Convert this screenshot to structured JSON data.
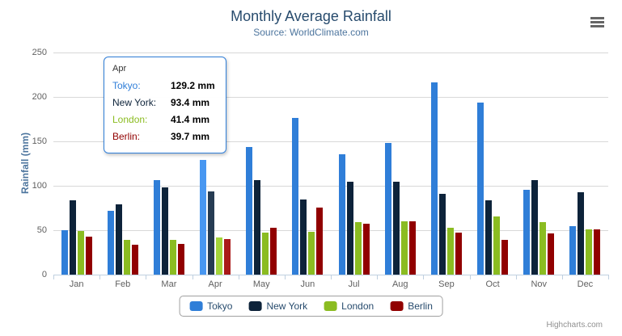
{
  "chart": {
    "title": "Monthly Average Rainfall",
    "subtitle": "Source: WorldClimate.com",
    "yaxis_title": "Rainfall (mm)",
    "credits": "Highcharts.com"
  },
  "chart_data": {
    "type": "bar",
    "title": "Monthly Average Rainfall",
    "subtitle": "Source: WorldClimate.com",
    "xlabel": "",
    "ylabel": "Rainfall (mm)",
    "ylim": [
      0,
      250
    ],
    "yticks": [
      0,
      50,
      100,
      150,
      200,
      250
    ],
    "grid": true,
    "legend_position": "bottom",
    "categories": [
      "Jan",
      "Feb",
      "Mar",
      "Apr",
      "May",
      "Jun",
      "Jul",
      "Aug",
      "Sep",
      "Oct",
      "Nov",
      "Dec"
    ],
    "series": [
      {
        "name": "Tokyo",
        "color": "#2f7ed8",
        "hover_color": "#4897f1",
        "values": [
          49.9,
          71.5,
          106.4,
          129.2,
          144.0,
          176.0,
          135.6,
          148.5,
          216.4,
          194.1,
          95.6,
          54.4
        ]
      },
      {
        "name": "New York",
        "color": "#0d233a",
        "hover_color": "#263c53",
        "values": [
          83.6,
          78.8,
          98.5,
          93.4,
          106.0,
          84.5,
          105.0,
          104.3,
          91.2,
          83.5,
          106.6,
          92.3
        ]
      },
      {
        "name": "London",
        "color": "#8bbc21",
        "hover_color": "#a4d53a",
        "values": [
          48.9,
          38.8,
          39.3,
          41.4,
          47.0,
          48.3,
          59.0,
          59.6,
          52.4,
          65.2,
          59.3,
          51.2
        ]
      },
      {
        "name": "Berlin",
        "color": "#910000",
        "hover_color": "#aa1919",
        "values": [
          42.4,
          33.2,
          34.5,
          39.7,
          52.6,
          75.5,
          57.4,
          60.4,
          47.6,
          39.1,
          46.8,
          51.1
        ]
      }
    ],
    "hovered_category_index": 3,
    "hovered_category": "Apr"
  },
  "tooltip": {
    "header": "Apr",
    "rows": [
      {
        "label": "Tokyo:",
        "value": "129.2 mm",
        "color": "#2f7ed8"
      },
      {
        "label": "New York:",
        "value": "93.4 mm",
        "color": "#0d233a"
      },
      {
        "label": "London:",
        "value": "41.4 mm",
        "color": "#8bbc21"
      },
      {
        "label": "Berlin:",
        "value": "39.7 mm",
        "color": "#910000"
      }
    ]
  },
  "legend": {
    "items": [
      "Tokyo",
      "New York",
      "London",
      "Berlin"
    ]
  }
}
